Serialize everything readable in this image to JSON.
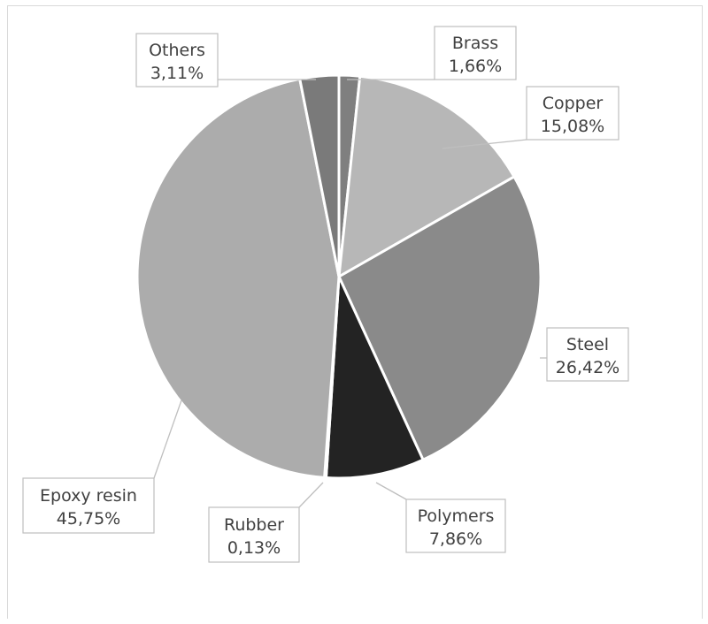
{
  "chart_data": {
    "type": "pie",
    "title": "",
    "slices": [
      {
        "name": "Brass",
        "value": 1.66,
        "label": "1,66%",
        "color": "#7f7f7f"
      },
      {
        "name": "Copper",
        "value": 15.08,
        "label": "15,08%",
        "color": "#b7b7b7"
      },
      {
        "name": "Steel",
        "value": 26.42,
        "label": "26,42%",
        "color": "#8a8a8a"
      },
      {
        "name": "Polymers",
        "value": 7.86,
        "label": "7,86%",
        "color": "#232323"
      },
      {
        "name": "Rubber",
        "value": 0.13,
        "label": "0,13%",
        "color": "#9a9a9a"
      },
      {
        "name": "Epoxy resin",
        "value": 45.75,
        "label": "45,75%",
        "color": "#acacac"
      },
      {
        "name": "Others",
        "value": 3.11,
        "label": "3,11%",
        "color": "#7a7a7a"
      }
    ],
    "start_angle_deg": 0,
    "direction": "clockwise",
    "labels_style": "callout boxes with leader lines"
  }
}
